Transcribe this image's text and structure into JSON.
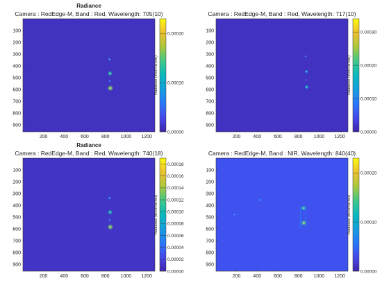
{
  "chart_data": [
    {
      "type": "heatmap",
      "title": "Radiance",
      "subtitle": "Camera : RedEdge-M, Band : Red, Wavelength: 705(10)",
      "colorbar_label": "Radiance (W/m²/sr/nm)",
      "colormap": "parula",
      "xlim": [
        1,
        1280
      ],
      "ylim": [
        1,
        960
      ],
      "y_reversed": true,
      "xticks": [
        200,
        400,
        600,
        800,
        1000,
        1200
      ],
      "yticks": [
        100,
        200,
        300,
        400,
        500,
        600,
        700,
        800,
        900
      ],
      "clim": [
        0,
        0.00023
      ],
      "cbar_ticks": [
        "0.00000",
        "0.00010",
        "0.00020"
      ],
      "background_value": 1e-05,
      "hotspots": [
        {
          "x": 840,
          "y": 345,
          "value": 6e-05
        },
        {
          "x": 845,
          "y": 465,
          "value": 0.00013
        },
        {
          "x": 843,
          "y": 530,
          "value": 5e-05
        },
        {
          "x": 848,
          "y": 590,
          "value": 0.00016
        }
      ]
    },
    {
      "type": "heatmap",
      "title": "",
      "subtitle": "Camera : RedEdge-M, Band : Red, Wavelength: 717(10)",
      "colorbar_label": "Radiance (W/m²/sr/nm)",
      "colormap": "parula",
      "xlim": [
        1,
        1280
      ],
      "ylim": [
        1,
        960
      ],
      "y_reversed": true,
      "xticks": [
        200,
        400,
        600,
        800,
        1000,
        1200
      ],
      "yticks": [
        100,
        200,
        300,
        400,
        500,
        600,
        700,
        800,
        900
      ],
      "clim": [
        0,
        0.00034
      ],
      "cbar_ticks": [
        "0.00000",
        "0.00010",
        "0.00020",
        "0.00030"
      ],
      "background_value": 1.5e-05,
      "hotspots": [
        {
          "x": 870,
          "y": 320,
          "value": 6e-05
        },
        {
          "x": 878,
          "y": 450,
          "value": 0.00012
        },
        {
          "x": 872,
          "y": 520,
          "value": 5e-05
        },
        {
          "x": 880,
          "y": 580,
          "value": 0.00015
        }
      ]
    },
    {
      "type": "heatmap",
      "title": "Radiance",
      "subtitle": "Camera : RedEdge-M, Band : Red, Wavelength: 740(18)",
      "colorbar_label": "Radiance (W/m²/sr/nm)",
      "colormap": "parula",
      "xlim": [
        1,
        1280
      ],
      "ylim": [
        1,
        960
      ],
      "y_reversed": true,
      "xticks": [
        200,
        400,
        600,
        800,
        1000,
        1200
      ],
      "yticks": [
        100,
        200,
        300,
        400,
        500,
        600,
        700,
        800,
        900
      ],
      "clim": [
        0,
        0.00019
      ],
      "cbar_ticks": [
        "0.00000",
        "0.00002",
        "0.00004",
        "0.00006",
        "0.00008",
        "0.00010",
        "0.00012",
        "0.00014",
        "0.00016",
        "0.00018"
      ],
      "background_value": 1e-05,
      "hotspots": [
        {
          "x": 840,
          "y": 340,
          "value": 5e-05
        },
        {
          "x": 846,
          "y": 460,
          "value": 0.0001
        },
        {
          "x": 842,
          "y": 525,
          "value": 4e-05
        },
        {
          "x": 848,
          "y": 585,
          "value": 0.00013
        }
      ]
    },
    {
      "type": "heatmap",
      "title": "",
      "subtitle": "Camera : RedEdge-M, Band : NIR, Wavelength: 840(40)",
      "colorbar_label": "Radiance (W/m²/sr/nm)",
      "colormap": "parula",
      "xlim": [
        1,
        1280
      ],
      "ylim": [
        1,
        960
      ],
      "y_reversed": true,
      "xticks": [
        200,
        400,
        600,
        800,
        1000,
        1200
      ],
      "yticks": [
        100,
        200,
        300,
        400,
        500,
        600,
        700,
        800,
        900
      ],
      "clim": [
        0,
        0.00023
      ],
      "cbar_ticks": [
        "0.00000",
        "0.00010",
        "0.00020"
      ],
      "background_value": 3.5e-05,
      "hotspots": [
        {
          "x": 430,
          "y": 355,
          "value": 6e-05
        },
        {
          "x": 180,
          "y": 480,
          "value": 5e-05
        },
        {
          "x": 850,
          "y": 425,
          "value": 0.00013
        },
        {
          "x": 852,
          "y": 550,
          "value": 0.00015
        }
      ],
      "streaks": [
        {
          "x": 820,
          "y0": 410,
          "y1": 600,
          "value": 6e-05
        },
        {
          "x": 870,
          "y0": 410,
          "y1": 600,
          "value": 5e-05
        }
      ]
    }
  ]
}
